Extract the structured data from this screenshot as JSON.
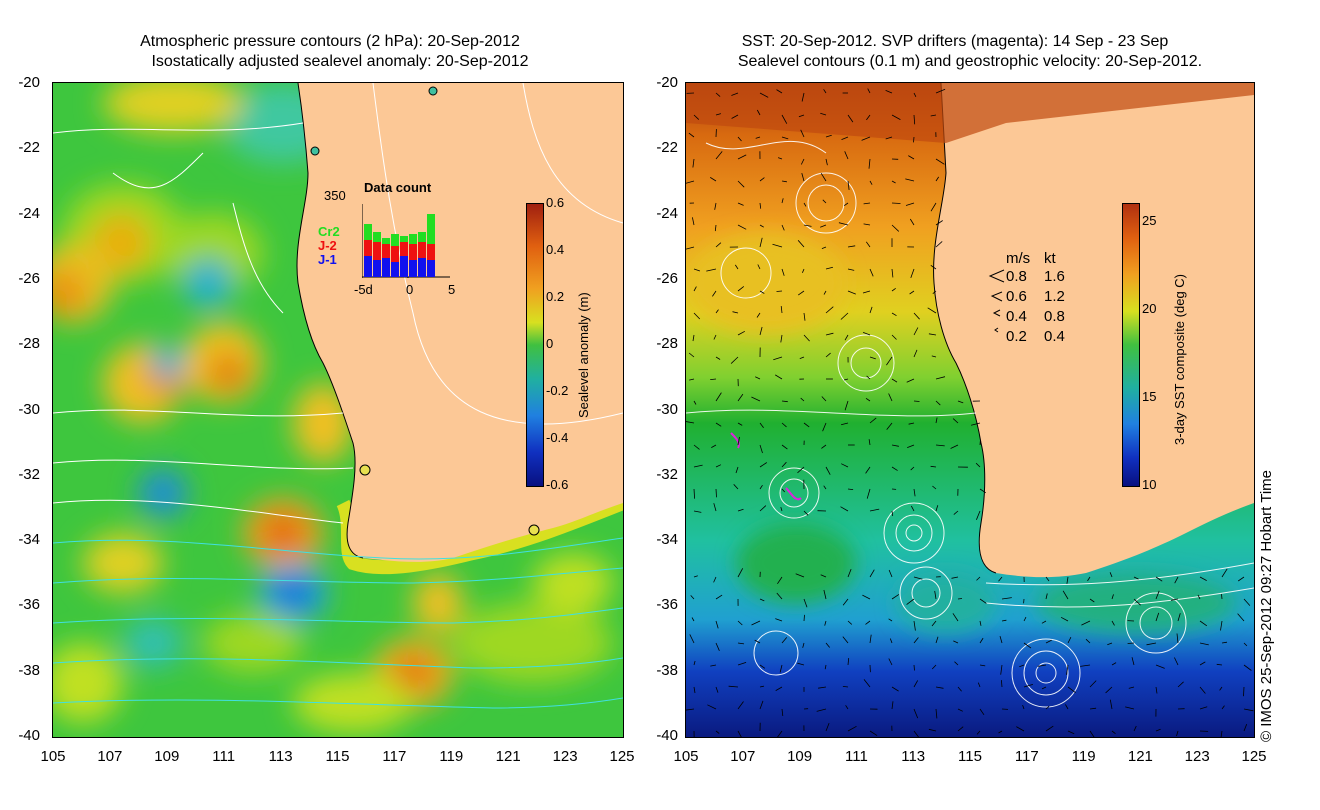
{
  "left_panel": {
    "title_line1": "Atmospheric pressure contours (2 hPa): 20-Sep-2012",
    "title_line2": "Isostatically adjusted sealevel anomaly: 20-Sep-2012",
    "y_ticks": [
      "-20",
      "-22",
      "-24",
      "-26",
      "-28",
      "-30",
      "-32",
      "-34",
      "-36",
      "-38",
      "-40"
    ],
    "x_ticks": [
      "105",
      "107",
      "109",
      "111",
      "113",
      "115",
      "117",
      "119",
      "121",
      "123",
      "125"
    ],
    "colorbar": {
      "label": "Sealevel anomaly (m)",
      "ticks": [
        "0.6",
        "0.4",
        "0.2",
        "0",
        "-0.2",
        "-0.4",
        "-0.6"
      ]
    },
    "data_count": {
      "title": "Data count",
      "max": "350",
      "series": [
        "Cr2",
        "J-2",
        "J-1"
      ],
      "series_colors": [
        "#22dd22",
        "#ee1111",
        "#1111ee"
      ],
      "x_ticks": [
        "-5d",
        "0",
        "5"
      ]
    }
  },
  "right_panel": {
    "title_line1": "SST: 20-Sep-2012. SVP drifters (magenta): 14 Sep - 23 Sep",
    "title_line2": "Sealevel contours (0.1 m) and geostrophic velocity: 20-Sep-2012.",
    "y_ticks": [
      "-20",
      "-22",
      "-24",
      "-26",
      "-28",
      "-30",
      "-32",
      "-34",
      "-36",
      "-38",
      "-40"
    ],
    "x_ticks": [
      "105",
      "107",
      "109",
      "111",
      "113",
      "115",
      "117",
      "119",
      "121",
      "123",
      "125"
    ],
    "colorbar": {
      "label": "3-day SST composite (deg C)",
      "ticks": [
        "25",
        "20",
        "15",
        "10"
      ]
    },
    "velocity_legend": {
      "header_ms": "m/s",
      "header_kt": "kt",
      "rows": [
        {
          "ms": "0.8",
          "kt": "1.6"
        },
        {
          "ms": "0.6",
          "kt": "1.2"
        },
        {
          "ms": "0.4",
          "kt": "0.8"
        },
        {
          "ms": "0.2",
          "kt": "0.4"
        }
      ]
    }
  },
  "watermark": "© IMOS 25-Sep-2012 09:27 Hobart Time",
  "colors": {
    "land": "#fcc896",
    "contour_white": "#ffffff",
    "contour_cyan": "#40e0e0",
    "drifter": "#dd22dd"
  }
}
